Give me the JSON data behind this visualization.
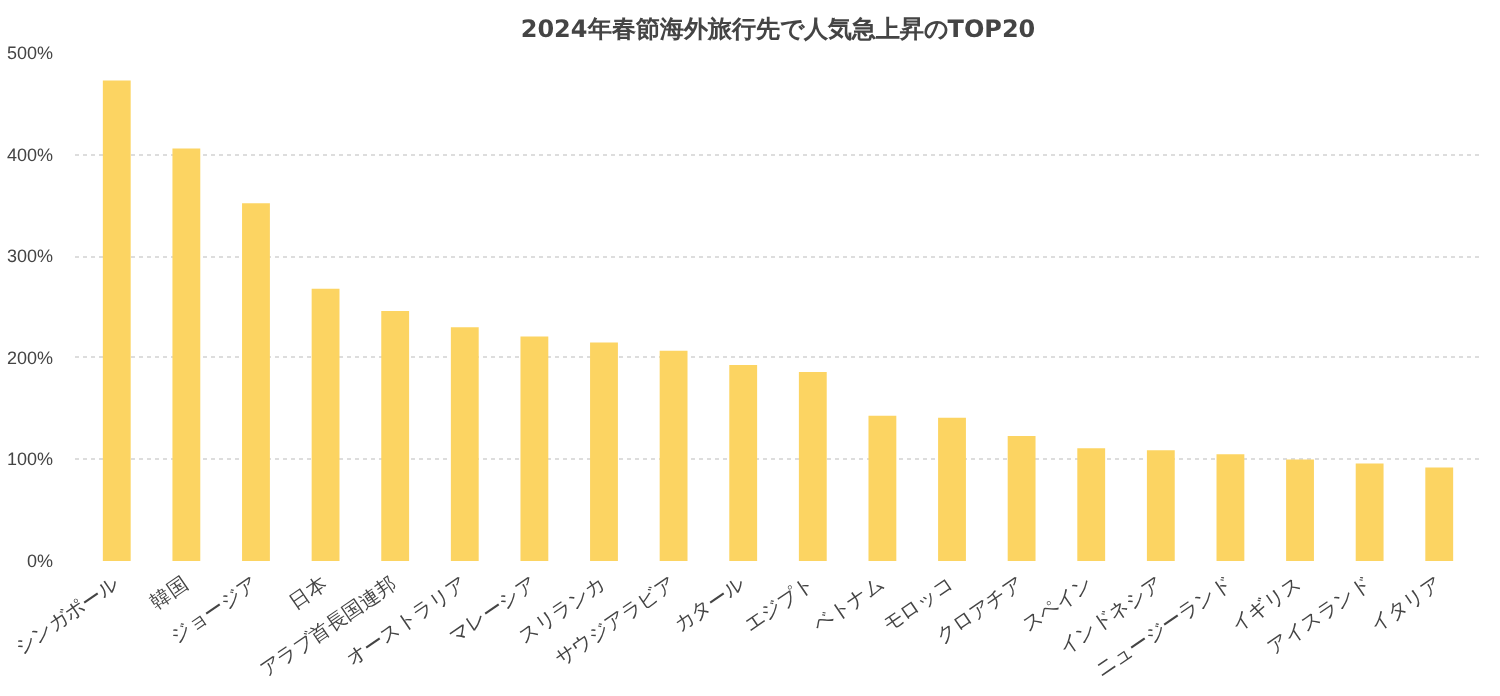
{
  "chart_data": {
    "type": "bar",
    "title": "2024年春節海外旅行先で人気急上昇のTOP20",
    "categories": [
      "シンガポール",
      "韓国",
      "ジョージア",
      "日本",
      "アラブ首長国連邦",
      "オーストラリア",
      "マレーシア",
      "スリランカ",
      "サウジアラビア",
      "カタール",
      "エジプト",
      "ベトナム",
      "モロッコ",
      "クロアチア",
      "スペイン",
      "インドネシア",
      "ニュージーランド",
      "イギリス",
      "アイスランド",
      "イタリア"
    ],
    "values": [
      473,
      406,
      352,
      268,
      246,
      230,
      221,
      215,
      207,
      193,
      186,
      143,
      141,
      123,
      111,
      109,
      105,
      100,
      96,
      92
    ],
    "color": "#fcd462",
    "ylim": [
      0,
      500
    ],
    "yticks": [
      {
        "value": 0,
        "label": "0%"
      },
      {
        "value": 100,
        "label": "100%"
      },
      {
        "value": 200,
        "label": "200%"
      },
      {
        "value": 300,
        "label": "300%"
      },
      {
        "value": 400,
        "label": "400%"
      },
      {
        "value": 500,
        "label": "500%"
      }
    ],
    "grid": "y"
  }
}
